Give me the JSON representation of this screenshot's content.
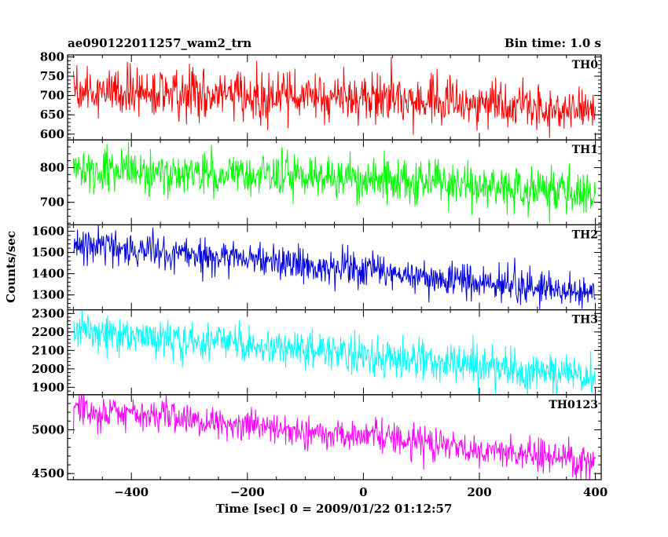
{
  "header": {
    "left_title": "ae090122011257_wam2_trn",
    "right_title": "Bin time: 1.0 s"
  },
  "chart_data": {
    "type": "line",
    "xlabel": "Time [sec] 0 = 2009/01/22 01:12:57",
    "ylabel": "Counts/sec",
    "xlim": [
      -510,
      410
    ],
    "x_ticks": [
      -400,
      -200,
      0,
      200,
      400
    ],
    "x_tick_labels": [
      "−400",
      "−200",
      "0",
      "200",
      "400"
    ],
    "x_step_sec": 1.0,
    "panels": [
      {
        "name": "TH0",
        "color": "#ff0000",
        "ylim": [
          585,
          805
        ],
        "y_ticks": [
          600,
          650,
          700,
          750,
          800
        ],
        "y_tick_labels": [
          "600",
          "650",
          "700",
          "750",
          "800"
        ],
        "trend": [
          [
            -500,
            710
          ],
          [
            0,
            695
          ],
          [
            400,
            660
          ]
        ],
        "noise_sd": 30
      },
      {
        "name": "TH1",
        "color": "#00ff00",
        "ylim": [
          635,
          880
        ],
        "y_ticks": [
          700,
          800
        ],
        "y_tick_labels": [
          "700",
          "800"
        ],
        "trend": [
          [
            -500,
            795
          ],
          [
            0,
            770
          ],
          [
            400,
            720
          ]
        ],
        "noise_sd": 32
      },
      {
        "name": "TH2",
        "color": "#0000e0",
        "ylim": [
          1230,
          1630
        ],
        "y_ticks": [
          1300,
          1400,
          1500,
          1600
        ],
        "y_tick_labels": [
          "1300",
          "1400",
          "1500",
          "1600"
        ],
        "trend": [
          [
            -500,
            1545
          ],
          [
            0,
            1415
          ],
          [
            400,
            1305
          ]
        ],
        "noise_sd": 40
      },
      {
        "name": "TH3",
        "color": "#00ffff",
        "ylim": [
          1860,
          2320
        ],
        "y_ticks": [
          1900,
          2000,
          2100,
          2200,
          2300
        ],
        "y_tick_labels": [
          "1900",
          "2000",
          "2100",
          "2200",
          "2300"
        ],
        "trend": [
          [
            -500,
            2200
          ],
          [
            0,
            2080
          ],
          [
            400,
            1960
          ]
        ],
        "noise_sd": 50
      },
      {
        "name": "TH0123",
        "color": "#ff00ff",
        "ylim": [
          4430,
          5400
        ],
        "y_ticks": [
          4500,
          5000
        ],
        "y_tick_labels": [
          "4500",
          "5000"
        ],
        "trend": [
          [
            -500,
            5230
          ],
          [
            0,
            4930
          ],
          [
            400,
            4620
          ]
        ],
        "noise_sd": 90
      }
    ]
  }
}
